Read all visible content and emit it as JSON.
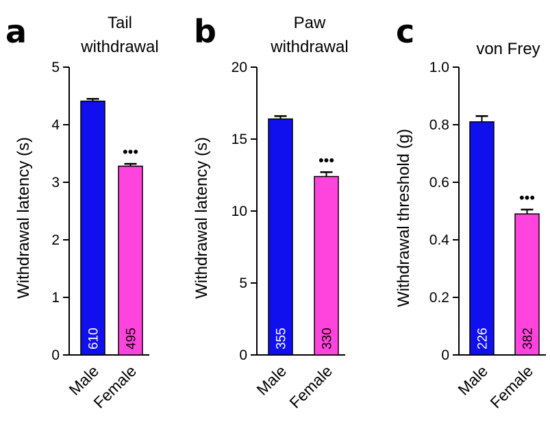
{
  "chart_data": [
    {
      "type": "bar",
      "panel": "a",
      "title_lines": [
        "Tail",
        "withdrawal"
      ],
      "ylabel": "Withdrawal latency (s)",
      "ylim": [
        0,
        5
      ],
      "ticks": [
        "0",
        "1",
        "2",
        "3",
        "4",
        "5"
      ],
      "tick_values": [
        0,
        1,
        2,
        3,
        4,
        5
      ],
      "categories": [
        "Male",
        "Female"
      ],
      "values": [
        4.41,
        3.28
      ],
      "errors": [
        0.04,
        0.04
      ],
      "n_labels": [
        "610",
        "495"
      ],
      "significance": [
        "",
        "•••"
      ],
      "colors": [
        "#1010ee",
        "#ff44dd"
      ],
      "n_label_colors": [
        "#ffffff",
        "#000000"
      ]
    },
    {
      "type": "bar",
      "panel": "b",
      "title_lines": [
        "Paw",
        "withdrawal"
      ],
      "ylabel": "Withdrawal latency (s)",
      "ylim": [
        0,
        20
      ],
      "ticks": [
        "0",
        "5",
        "10",
        "15",
        "20"
      ],
      "tick_values": [
        0,
        5,
        10,
        15,
        20
      ],
      "categories": [
        "Male",
        "Female"
      ],
      "values": [
        16.4,
        12.4
      ],
      "errors": [
        0.2,
        0.3
      ],
      "n_labels": [
        "355",
        "330"
      ],
      "significance": [
        "",
        "•••"
      ],
      "colors": [
        "#1010ee",
        "#ff44dd"
      ],
      "n_label_colors": [
        "#ffffff",
        "#000000"
      ]
    },
    {
      "type": "bar",
      "panel": "c",
      "title_lines": [
        "von Frey"
      ],
      "ylabel": "Withdrawal threshold (g)",
      "ylim": [
        0,
        1.0
      ],
      "ticks": [
        "0",
        "0.2",
        "0.4",
        "0.6",
        "0.8",
        "1.0"
      ],
      "tick_values": [
        0,
        0.2,
        0.4,
        0.6,
        0.8,
        1.0
      ],
      "categories": [
        "Male",
        "Female"
      ],
      "values": [
        0.81,
        0.49
      ],
      "errors": [
        0.02,
        0.015
      ],
      "n_labels": [
        "226",
        "382"
      ],
      "significance": [
        "",
        "•••"
      ],
      "colors": [
        "#1010ee",
        "#ff44dd"
      ],
      "n_label_colors": [
        "#ffffff",
        "#000000"
      ]
    }
  ]
}
